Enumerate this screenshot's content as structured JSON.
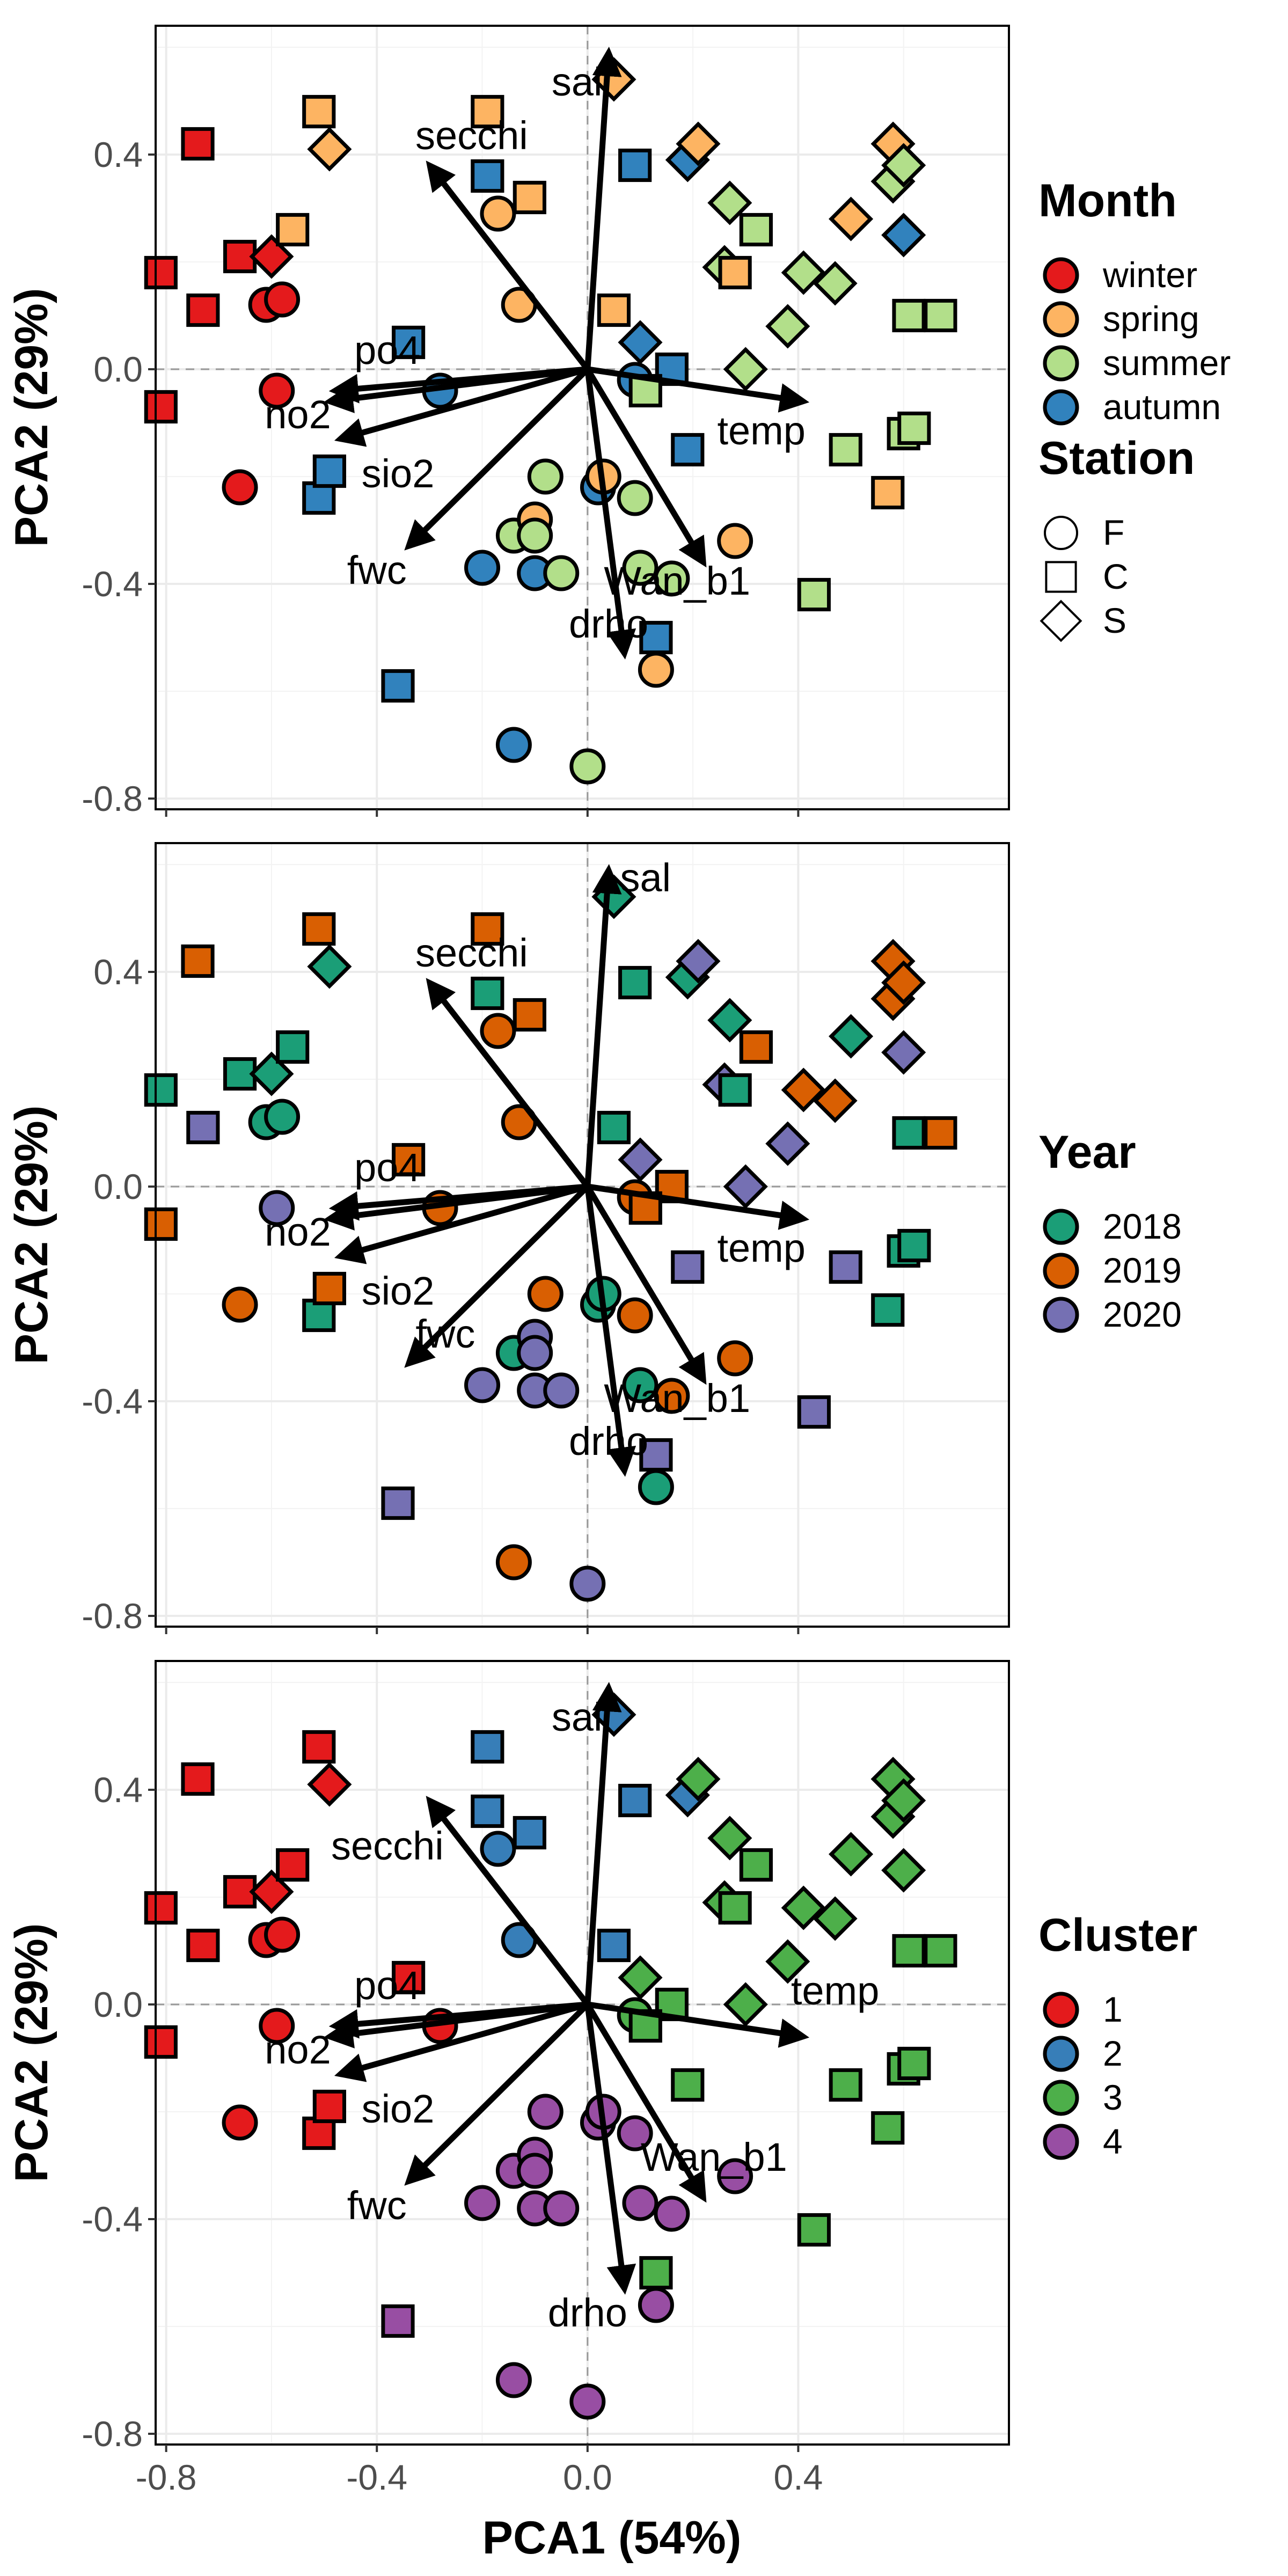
{
  "chart_data": {
    "type": "scatter",
    "xlabel": "PCA1 (54%)",
    "ylabel": "PCA2 (29%)",
    "xlim": [
      -0.82,
      0.8
    ],
    "ylim": [
      -0.82,
      0.64
    ],
    "xticks": [
      "-0.8",
      "-0.4",
      "0.0",
      "0.4"
    ],
    "yticks": [
      "0.4",
      "0.0",
      "-0.4",
      "-0.8"
    ],
    "grid": true,
    "arrows": [
      {
        "name": "sal",
        "x": 0.04,
        "y": 0.59
      },
      {
        "name": "secchi",
        "x": -0.3,
        "y": 0.38
      },
      {
        "name": "po4",
        "x": -0.48,
        "y": -0.04
      },
      {
        "name": "no2",
        "x": -0.49,
        "y": -0.06
      },
      {
        "name": "sio2",
        "x": -0.47,
        "y": -0.13
      },
      {
        "name": "fwc",
        "x": -0.34,
        "y": -0.33
      },
      {
        "name": "temp",
        "x": 0.41,
        "y": -0.06
      },
      {
        "name": "Wan_b1",
        "x": 0.22,
        "y": -0.36
      },
      {
        "name": "drho",
        "x": 0.07,
        "y": -0.53
      }
    ],
    "panels": [
      {
        "legend_title": "Month",
        "categories": [
          {
            "name": "winter",
            "color": "#E41A1C"
          },
          {
            "name": "spring",
            "color": "#FDB462"
          },
          {
            "name": "summer",
            "color": "#B2DF8A"
          },
          {
            "name": "autumn",
            "color": "#3182BD"
          }
        ],
        "shape_legend": {
          "title": "Station",
          "items": [
            {
              "name": "F",
              "shape": "circle"
            },
            {
              "name": "C",
              "shape": "square"
            },
            {
              "name": "S",
              "shape": "diamond"
            }
          ]
        },
        "label_positions": {
          "sal": [
            -0.02,
            0.51
          ],
          "secchi": [
            -0.22,
            0.41
          ],
          "po4": [
            -0.38,
            0.01
          ],
          "no2": [
            -0.55,
            -0.11
          ],
          "sio2": [
            -0.36,
            -0.22
          ],
          "fwc": [
            -0.4,
            -0.4
          ],
          "temp": [
            0.33,
            -0.14
          ],
          "Wan_b1": [
            0.17,
            -0.42
          ],
          "drho": [
            0.04,
            -0.5
          ]
        }
      },
      {
        "legend_title": "Year",
        "categories": [
          {
            "name": "2018",
            "color": "#1B9E77"
          },
          {
            "name": "2019",
            "color": "#D95F02"
          },
          {
            "name": "2020",
            "color": "#7570B3"
          }
        ],
        "label_positions": {
          "sal": [
            0.11,
            0.55
          ],
          "secchi": [
            -0.22,
            0.41
          ],
          "po4": [
            -0.38,
            0.01
          ],
          "no2": [
            -0.55,
            -0.11
          ],
          "sio2": [
            -0.36,
            -0.22
          ],
          "fwc": [
            -0.27,
            -0.3
          ],
          "temp": [
            0.33,
            -0.14
          ],
          "Wan_b1": [
            0.17,
            -0.42
          ],
          "drho": [
            0.04,
            -0.5
          ]
        }
      },
      {
        "legend_title": "Cluster",
        "categories": [
          {
            "name": "1",
            "color": "#E41A1C"
          },
          {
            "name": "2",
            "color": "#377EB8"
          },
          {
            "name": "3",
            "color": "#4DAF4A"
          },
          {
            "name": "4",
            "color": "#984EA3"
          }
        ],
        "label_positions": {
          "sal": [
            -0.02,
            0.51
          ],
          "secchi": [
            -0.38,
            0.27
          ],
          "po4": [
            -0.38,
            0.01
          ],
          "no2": [
            -0.55,
            -0.11
          ],
          "sio2": [
            -0.36,
            -0.22
          ],
          "fwc": [
            -0.4,
            -0.4
          ],
          "temp": [
            0.47,
            0.0
          ],
          "Wan_b1": [
            0.24,
            -0.31
          ],
          "drho": [
            0.0,
            -0.6
          ]
        }
      }
    ],
    "points": [
      {
        "x": -0.81,
        "y": 0.18,
        "s": "C",
        "m": 0,
        "y_": 0,
        "c": 0
      },
      {
        "x": -0.81,
        "y": -0.07,
        "s": "C",
        "m": 0,
        "y_": 1,
        "c": 0
      },
      {
        "x": -0.74,
        "y": 0.42,
        "s": "C",
        "m": 0,
        "y_": 1,
        "c": 0
      },
      {
        "x": -0.73,
        "y": 0.11,
        "s": "C",
        "m": 0,
        "y_": 2,
        "c": 0
      },
      {
        "x": -0.66,
        "y": 0.21,
        "s": "C",
        "m": 0,
        "y_": 0,
        "c": 0
      },
      {
        "x": -0.66,
        "y": -0.22,
        "s": "F",
        "m": 0,
        "y_": 1,
        "c": 0
      },
      {
        "x": -0.6,
        "y": 0.21,
        "s": "S",
        "m": 0,
        "y_": 0,
        "c": 0
      },
      {
        "x": -0.61,
        "y": 0.12,
        "s": "F",
        "m": 0,
        "y_": 0,
        "c": 0
      },
      {
        "x": -0.58,
        "y": 0.13,
        "s": "F",
        "m": 0,
        "y_": 0,
        "c": 0
      },
      {
        "x": -0.59,
        "y": -0.04,
        "s": "F",
        "m": 0,
        "y_": 2,
        "c": 0
      },
      {
        "x": -0.51,
        "y": 0.48,
        "s": "C",
        "m": 1,
        "y_": 1,
        "c": 0
      },
      {
        "x": -0.49,
        "y": 0.41,
        "s": "S",
        "m": 1,
        "y_": 0,
        "c": 0
      },
      {
        "x": -0.56,
        "y": 0.26,
        "s": "C",
        "m": 1,
        "y_": 0,
        "c": 0
      },
      {
        "x": -0.51,
        "y": -0.24,
        "s": "C",
        "m": 3,
        "y_": 0,
        "c": 0
      },
      {
        "x": -0.49,
        "y": -0.19,
        "s": "C",
        "m": 3,
        "y_": 1,
        "c": 0
      },
      {
        "x": -0.34,
        "y": 0.05,
        "s": "C",
        "m": 3,
        "y_": 1,
        "c": 0
      },
      {
        "x": -0.28,
        "y": -0.04,
        "s": "F",
        "m": 3,
        "y_": 1,
        "c": 0
      },
      {
        "x": -0.36,
        "y": -0.59,
        "s": "C",
        "m": 3,
        "y_": 2,
        "c": 3
      },
      {
        "x": -0.19,
        "y": 0.48,
        "s": "C",
        "m": 1,
        "y_": 1,
        "c": 1
      },
      {
        "x": -0.19,
        "y": 0.36,
        "s": "C",
        "m": 3,
        "y_": 0,
        "c": 1
      },
      {
        "x": -0.17,
        "y": 0.29,
        "s": "F",
        "m": 1,
        "y_": 1,
        "c": 1
      },
      {
        "x": -0.11,
        "y": 0.32,
        "s": "C",
        "m": 1,
        "y_": 1,
        "c": 1
      },
      {
        "x": -0.13,
        "y": 0.12,
        "s": "F",
        "m": 1,
        "y_": 1,
        "c": 1
      },
      {
        "x": 0.05,
        "y": 0.11,
        "s": "C",
        "m": 1,
        "y_": 0,
        "c": 1
      },
      {
        "x": 0.09,
        "y": 0.38,
        "s": "C",
        "m": 3,
        "y_": 0,
        "c": 1
      },
      {
        "x": 0.19,
        "y": 0.39,
        "s": "S",
        "m": 3,
        "y_": 0,
        "c": 1
      },
      {
        "x": 0.05,
        "y": 0.54,
        "s": "S",
        "m": 1,
        "y_": 0,
        "c": 1
      },
      {
        "x": 0.1,
        "y": 0.05,
        "s": "S",
        "m": 3,
        "y_": 2,
        "c": 2
      },
      {
        "x": 0.16,
        "y": 0.0,
        "s": "C",
        "m": 3,
        "y_": 1,
        "c": 2
      },
      {
        "x": 0.09,
        "y": -0.02,
        "s": "F",
        "m": 3,
        "y_": 1,
        "c": 2
      },
      {
        "x": 0.11,
        "y": -0.04,
        "s": "C",
        "m": 2,
        "y_": 1,
        "c": 2
      },
      {
        "x": 0.19,
        "y": -0.15,
        "s": "C",
        "m": 3,
        "y_": 2,
        "c": 2
      },
      {
        "x": 0.21,
        "y": 0.42,
        "s": "S",
        "m": 1,
        "y_": 2,
        "c": 2
      },
      {
        "x": 0.27,
        "y": 0.31,
        "s": "S",
        "m": 2,
        "y_": 0,
        "c": 2
      },
      {
        "x": 0.26,
        "y": 0.19,
        "s": "S",
        "m": 2,
        "y_": 2,
        "c": 2
      },
      {
        "x": 0.28,
        "y": 0.18,
        "s": "C",
        "m": 1,
        "y_": 0,
        "c": 2
      },
      {
        "x": 0.32,
        "y": 0.26,
        "s": "C",
        "m": 2,
        "y_": 1,
        "c": 2
      },
      {
        "x": 0.3,
        "y": 0.0,
        "s": "S",
        "m": 2,
        "y_": 2,
        "c": 2
      },
      {
        "x": 0.41,
        "y": 0.18,
        "s": "S",
        "m": 2,
        "y_": 1,
        "c": 2
      },
      {
        "x": 0.38,
        "y": 0.08,
        "s": "S",
        "m": 2,
        "y_": 2,
        "c": 2
      },
      {
        "x": 0.47,
        "y": 0.16,
        "s": "S",
        "m": 2,
        "y_": 1,
        "c": 2
      },
      {
        "x": 0.5,
        "y": 0.28,
        "s": "S",
        "m": 1,
        "y_": 0,
        "c": 2
      },
      {
        "x": 0.49,
        "y": -0.15,
        "s": "C",
        "m": 2,
        "y_": 2,
        "c": 2
      },
      {
        "x": 0.43,
        "y": -0.42,
        "s": "C",
        "m": 2,
        "y_": 2,
        "c": 2
      },
      {
        "x": 0.57,
        "y": -0.23,
        "s": "C",
        "m": 1,
        "y_": 0,
        "c": 2
      },
      {
        "x": 0.58,
        "y": 0.42,
        "s": "S",
        "m": 1,
        "y_": 1,
        "c": 2
      },
      {
        "x": 0.58,
        "y": 0.35,
        "s": "S",
        "m": 2,
        "y_": 1,
        "c": 2
      },
      {
        "x": 0.6,
        "y": 0.38,
        "s": "S",
        "m": 2,
        "y_": 1,
        "c": 2
      },
      {
        "x": 0.6,
        "y": 0.25,
        "s": "S",
        "m": 3,
        "y_": 2,
        "c": 2
      },
      {
        "x": 0.61,
        "y": 0.1,
        "s": "C",
        "m": 2,
        "y_": 0,
        "c": 2
      },
      {
        "x": 0.67,
        "y": 0.1,
        "s": "C",
        "m": 2,
        "y_": 1,
        "c": 2
      },
      {
        "x": 0.6,
        "y": -0.12,
        "s": "C",
        "m": 2,
        "y_": 0,
        "c": 2
      },
      {
        "x": 0.62,
        "y": -0.11,
        "s": "C",
        "m": 2,
        "y_": 0,
        "c": 2
      },
      {
        "x": -0.2,
        "y": -0.37,
        "s": "F",
        "m": 3,
        "y_": 2,
        "c": 3
      },
      {
        "x": -0.14,
        "y": -0.31,
        "s": "F",
        "m": 2,
        "y_": 0,
        "c": 3
      },
      {
        "x": -0.1,
        "y": -0.28,
        "s": "F",
        "m": 1,
        "y_": 2,
        "c": 3
      },
      {
        "x": -0.1,
        "y": -0.31,
        "s": "F",
        "m": 2,
        "y_": 2,
        "c": 3
      },
      {
        "x": -0.1,
        "y": -0.38,
        "s": "F",
        "m": 3,
        "y_": 2,
        "c": 3
      },
      {
        "x": -0.05,
        "y": -0.38,
        "s": "F",
        "m": 2,
        "y_": 2,
        "c": 3
      },
      {
        "x": -0.08,
        "y": -0.2,
        "s": "F",
        "m": 2,
        "y_": 1,
        "c": 3
      },
      {
        "x": 0.02,
        "y": -0.22,
        "s": "F",
        "m": 3,
        "y_": 0,
        "c": 3
      },
      {
        "x": 0.03,
        "y": -0.2,
        "s": "F",
        "m": 1,
        "y_": 0,
        "c": 3
      },
      {
        "x": 0.09,
        "y": -0.24,
        "s": "F",
        "m": 2,
        "y_": 1,
        "c": 3
      },
      {
        "x": 0.1,
        "y": -0.37,
        "s": "F",
        "m": 2,
        "y_": 0,
        "c": 3
      },
      {
        "x": 0.16,
        "y": -0.39,
        "s": "F",
        "m": 2,
        "y_": 1,
        "c": 3
      },
      {
        "x": 0.28,
        "y": -0.32,
        "s": "F",
        "m": 1,
        "y_": 1,
        "c": 3
      },
      {
        "x": 0.13,
        "y": -0.5,
        "s": "C",
        "m": 3,
        "y_": 2,
        "c": 2
      },
      {
        "x": 0.13,
        "y": -0.56,
        "s": "F",
        "m": 1,
        "y_": 0,
        "c": 3
      },
      {
        "x": -0.14,
        "y": -0.7,
        "s": "F",
        "m": 3,
        "y_": 1,
        "c": 3
      },
      {
        "x": 0.0,
        "y": -0.74,
        "s": "F",
        "m": 2,
        "y_": 2,
        "c": 3
      }
    ]
  }
}
